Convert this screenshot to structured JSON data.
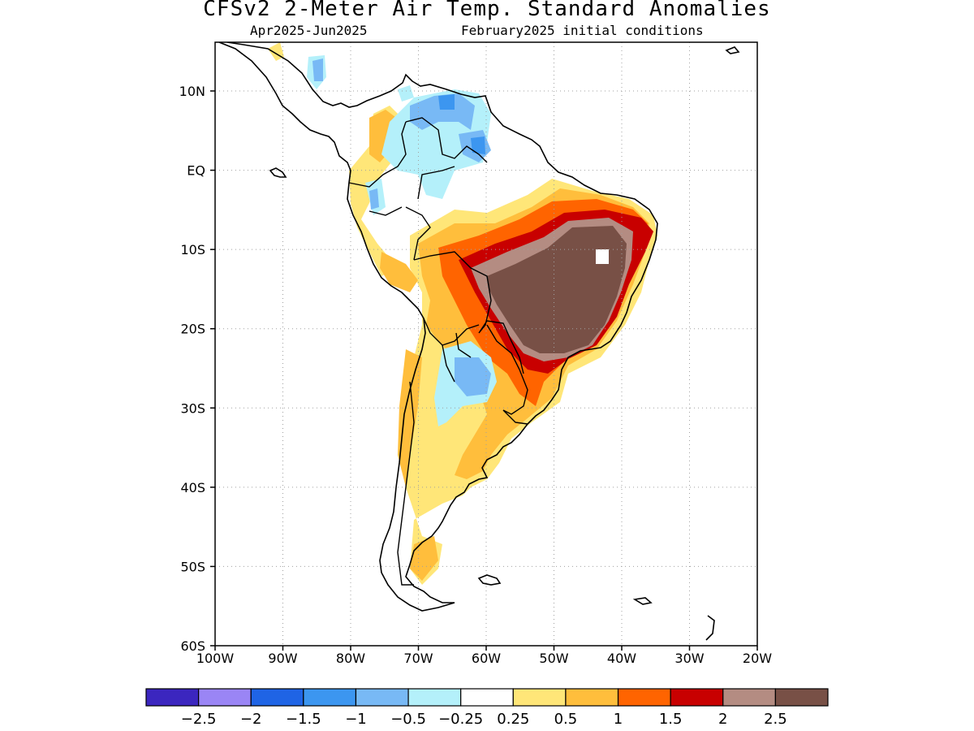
{
  "header": {
    "title": "CFSv2 2-Meter Air Temp. Standard Anomalies",
    "subtitle_left": "Apr2025-Jun2025",
    "subtitle_right": "February2025 initial conditions"
  },
  "axes": {
    "x_ticks": [
      "100W",
      "90W",
      "80W",
      "70W",
      "60W",
      "50W",
      "40W",
      "30W",
      "20W"
    ],
    "y_ticks": [
      "10N",
      "EQ",
      "10S",
      "20S",
      "30S",
      "40S",
      "50S",
      "60S"
    ],
    "grid": "dotted"
  },
  "colorbar": {
    "colors": [
      "#3b26bf",
      "#9a85f5",
      "#1f64e5",
      "#3c96f0",
      "#78b9f5",
      "#b4f0fa",
      "#ffffff",
      "#ffe678",
      "#ffbe3c",
      "#ff6400",
      "#c80000",
      "#b48c82",
      "#785046"
    ],
    "labels": [
      "-2.5",
      "-2",
      "-1.5",
      "-1",
      "-0.5",
      "-0.25",
      "0.25",
      "0.5",
      "1",
      "1.5",
      "2",
      "2.5"
    ]
  },
  "map": {
    "region": "South America",
    "anomaly_colors": {
      "strong_positive": "#785046",
      "high_positive": "#b48c82",
      "positive_2": "#c80000",
      "positive_15": "#ff6400",
      "positive_1": "#ffbe3c",
      "positive_05": "#ffe678",
      "neg_025": "#b4f0fa",
      "neg_05": "#78b9f5",
      "neg_1": "#3c96f0"
    }
  }
}
